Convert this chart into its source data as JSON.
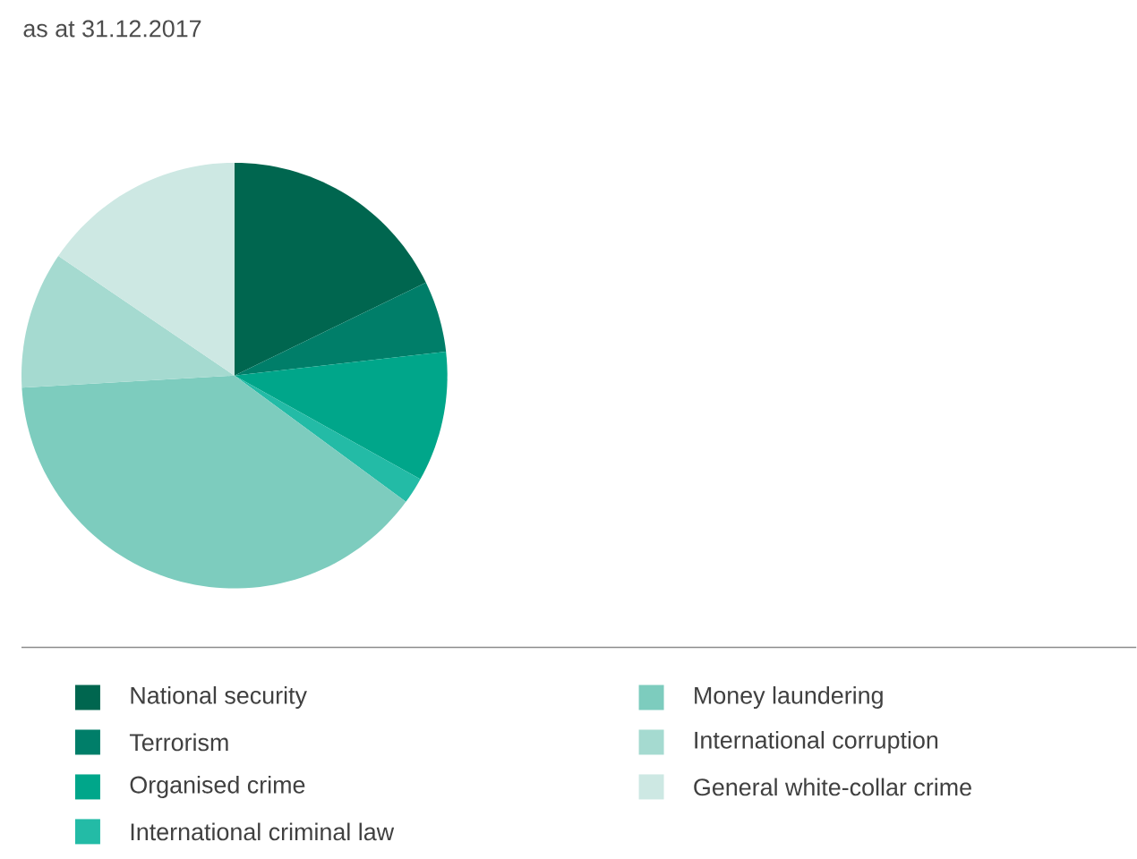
{
  "chart_data": {
    "type": "pie",
    "title": "as at 31.12.2017",
    "categories": [
      "National security",
      "Terrorism",
      "Organised crime",
      "International criminal law",
      "Money laundering",
      "International corruption",
      "General white-collar crime"
    ],
    "values": [
      17.8,
      5.4,
      9.9,
      2.0,
      39.0,
      10.4,
      15.5
    ],
    "colors": [
      "#00664f",
      "#007e69",
      "#00a68a",
      "#23bba6",
      "#7dccbe",
      "#a5dad0",
      "#cde8e3"
    ],
    "legend": "bottom"
  }
}
